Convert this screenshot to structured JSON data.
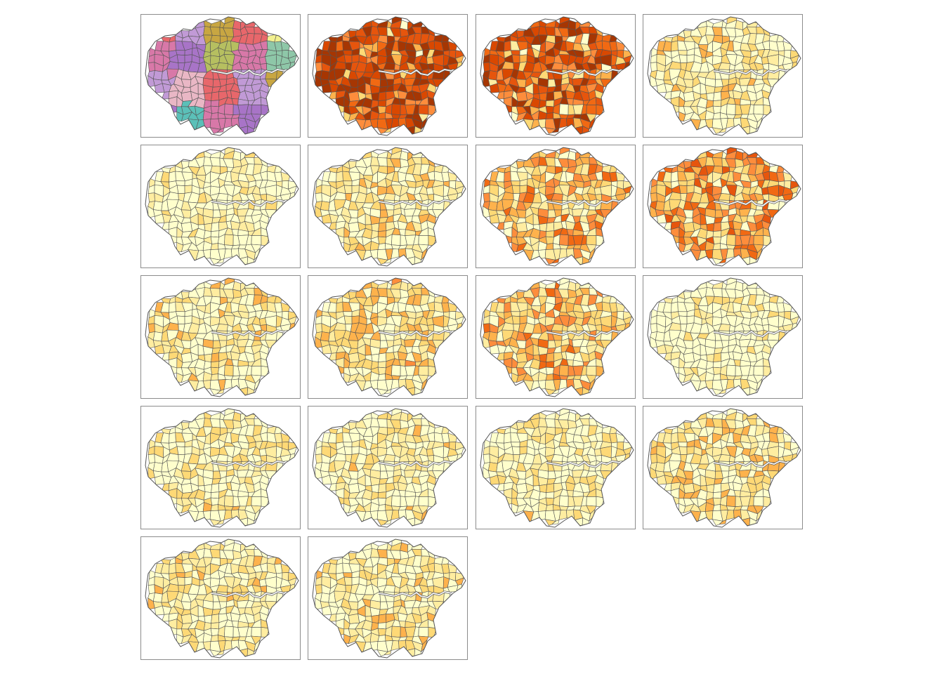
{
  "figure": {
    "layout": {
      "columns": 4,
      "rows": 5
    },
    "panel_count": 18,
    "colors": {
      "frame": "#8c8c8c",
      "boundary": "#555555",
      "river": "#f5f5f5",
      "sequential_scale": [
        "#ffffcc",
        "#ffeda0",
        "#fed976",
        "#feb24c",
        "#fd8d3c",
        "#f16913",
        "#e6550d",
        "#d94801",
        "#a63603"
      ],
      "categorical_scale": [
        "#e8676b",
        "#5bc0b8",
        "#c8a642",
        "#a874c7",
        "#f2f08f",
        "#d878a8",
        "#9fd6bd",
        "#b6bf60",
        "#e9b7c5",
        "#8ec7a8",
        "#c19ad6",
        "#e6a04a"
      ]
    },
    "panels": [
      {
        "index": 1,
        "scheme": "categorical",
        "level": 1.0
      },
      {
        "index": 2,
        "scheme": "sequential",
        "level": 0.78
      },
      {
        "index": 3,
        "scheme": "sequential",
        "level": 0.68
      },
      {
        "index": 4,
        "scheme": "sequential",
        "level": 0.12
      },
      {
        "index": 5,
        "scheme": "sequential",
        "level": 0.02
      },
      {
        "index": 6,
        "scheme": "sequential",
        "level": 0.14
      },
      {
        "index": 7,
        "scheme": "sequential",
        "level": 0.32
      },
      {
        "index": 8,
        "scheme": "sequential",
        "level": 0.42
      },
      {
        "index": 9,
        "scheme": "sequential",
        "level": 0.12
      },
      {
        "index": 10,
        "scheme": "sequential",
        "level": 0.18
      },
      {
        "index": 11,
        "scheme": "sequential",
        "level": 0.3
      },
      {
        "index": 12,
        "scheme": "sequential",
        "level": 0.03
      },
      {
        "index": 13,
        "scheme": "sequential",
        "level": 0.08
      },
      {
        "index": 14,
        "scheme": "sequential",
        "level": 0.1
      },
      {
        "index": 15,
        "scheme": "sequential",
        "level": 0.08
      },
      {
        "index": 16,
        "scheme": "sequential",
        "level": 0.16
      },
      {
        "index": 17,
        "scheme": "sequential",
        "level": 0.1
      },
      {
        "index": 18,
        "scheme": "sequential",
        "level": 0.12
      }
    ]
  }
}
